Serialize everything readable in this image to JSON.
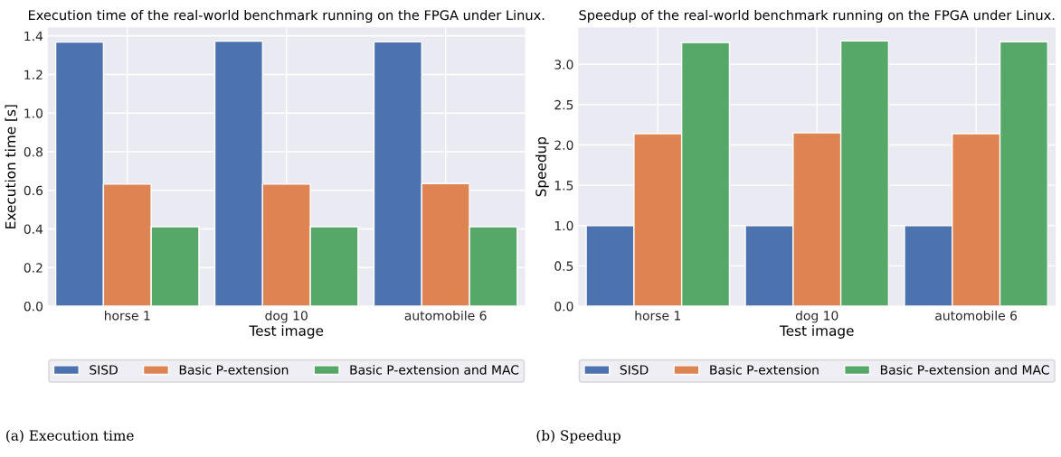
{
  "chart_data": [
    {
      "type": "bar",
      "title": "Execution time of the real-world benchmark running on the FPGA under Linux.",
      "xlabel": "Test image",
      "ylabel": "Execution time [s]",
      "categories": [
        "horse 1",
        "dog 10",
        "automobile 6"
      ],
      "series": [
        {
          "name": "SISD",
          "color": "#4c72b0",
          "values": [
            1.368,
            1.373,
            1.369
          ]
        },
        {
          "name": "Basic P-extension",
          "color": "#dd8452",
          "values": [
            0.632,
            0.632,
            0.635
          ]
        },
        {
          "name": "Basic P-extension and MAC",
          "color": "#55a868",
          "values": [
            0.412,
            0.412,
            0.412
          ]
        }
      ],
      "ylim": [
        0,
        1.444
      ],
      "yticks": [
        {
          "value": 0,
          "label": "0.0"
        },
        0.2,
        0.4,
        0.6,
        0.8,
        {
          "value": 1,
          "label": "1.0"
        },
        1.2,
        1.4
      ],
      "grid": true,
      "legend": "bottom",
      "annotations": [
        "(a) Execution time"
      ]
    },
    {
      "type": "bar",
      "title": "Speedup of the real-world benchmark running on the FPGA under Linux.",
      "xlabel": "Test image",
      "ylabel": "Speedup",
      "categories": [
        "horse 1",
        "dog 10",
        "automobile 6"
      ],
      "series": [
        {
          "name": "SISD",
          "color": "#4c72b0",
          "values": [
            1,
            1,
            1
          ]
        },
        {
          "name": "Basic P-extension",
          "color": "#dd8452",
          "values": [
            2.14,
            2.15,
            2.14
          ]
        },
        {
          "name": "Basic P-extension and MAC",
          "color": "#55a868",
          "values": [
            3.27,
            3.29,
            3.28
          ]
        }
      ],
      "ylim": [
        0,
        3.458
      ],
      "yticks": [
        {
          "value": 0,
          "label": "0.0"
        },
        0.5,
        {
          "value": 1,
          "label": "1.0"
        },
        1.5,
        {
          "value": 2,
          "label": "2.0"
        },
        2.5,
        {
          "value": 3,
          "label": "3.0"
        }
      ],
      "grid": true,
      "legend": "bottom",
      "annotations": [
        "(b) Speedup"
      ]
    }
  ]
}
